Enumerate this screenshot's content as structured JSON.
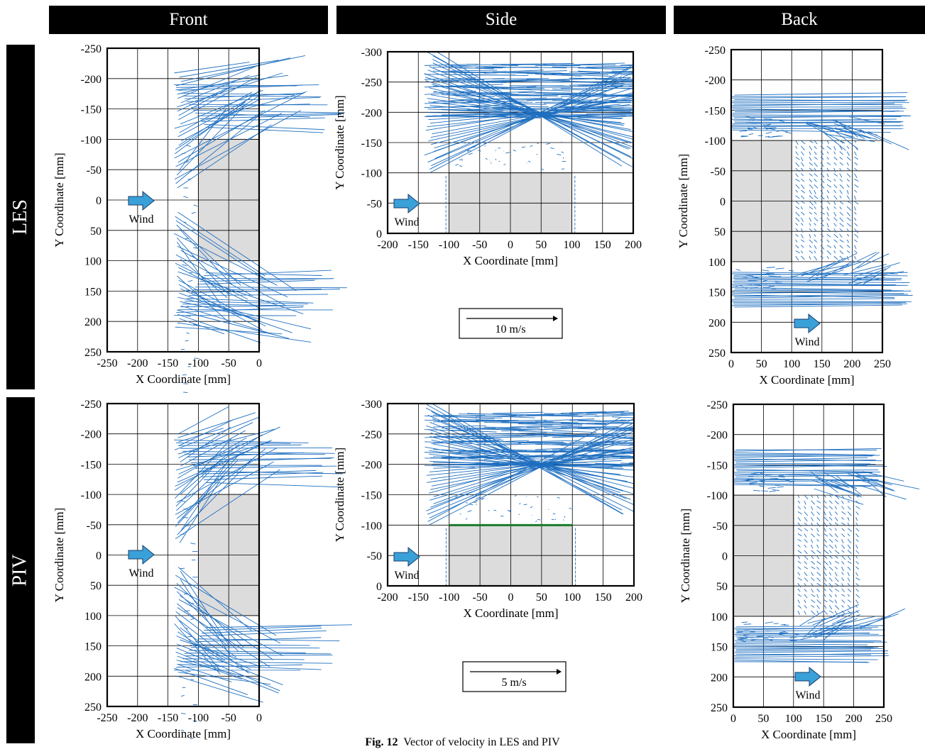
{
  "headers": {
    "columns": [
      "Front",
      "Side",
      "Back"
    ],
    "rows": [
      "LES",
      "PIV"
    ]
  },
  "caption": {
    "label": "Fig. 12",
    "text": "Vector of velocity in LES and PIV"
  },
  "colors": {
    "vector": "#1f6fc0",
    "building": "#dcdcdc",
    "grid": "#000000",
    "wind_arrow": "#3aa0d8",
    "roof_line": "#1a7a2a"
  },
  "chart_data": [
    {
      "id": "les-front",
      "type": "vector-field",
      "row": "LES",
      "view": "Front",
      "xlabel": "X Coordinate [mm]",
      "ylabel": "Y Coordinate [mm]",
      "xlim": [
        -250,
        0
      ],
      "ylim": [
        -250,
        250
      ],
      "y_inverted": true,
      "xticks": [
        "-250",
        "-200",
        "-150",
        "-100",
        "-50",
        "0"
      ],
      "yticks": [
        "-250",
        "-200",
        "-150",
        "-100",
        "-50",
        "0",
        "50",
        "100",
        "150",
        "200",
        "250"
      ],
      "building": {
        "x": [
          -100,
          0
        ],
        "y": [
          -100,
          100
        ]
      },
      "wind_label": "Wind",
      "grid": true
    },
    {
      "id": "les-side",
      "type": "vector-field",
      "row": "LES",
      "view": "Side",
      "xlabel": "X Coordinate [mm]",
      "ylabel": "Y Coordinate [mm]",
      "xlim": [
        -200,
        200
      ],
      "ylim": [
        -300,
        0
      ],
      "y_inverted": true,
      "xticks": [
        "-200",
        "-150",
        "-100",
        "-50",
        "0",
        "50",
        "100",
        "150",
        "200"
      ],
      "yticks": [
        "-300",
        "-250",
        "-200",
        "-150",
        "-100",
        "-50",
        "0"
      ],
      "building": {
        "x": [
          -100,
          100
        ],
        "y": [
          -100,
          0
        ]
      },
      "wind_label": "Wind",
      "grid": true,
      "scale_reference": "10 m/s"
    },
    {
      "id": "les-back",
      "type": "vector-field",
      "row": "LES",
      "view": "Back",
      "xlabel": "X Coordinate [mm]",
      "ylabel": "Y Coordinate [mm]",
      "xlim": [
        0,
        250
      ],
      "ylim": [
        -250,
        250
      ],
      "y_inverted": true,
      "xticks": [
        "0",
        "50",
        "100",
        "150",
        "200",
        "250"
      ],
      "yticks": [
        "-250",
        "-200",
        "-150",
        "-100",
        "-50",
        "0",
        "50",
        "100",
        "150",
        "200",
        "250"
      ],
      "building": {
        "x": [
          0,
          100
        ],
        "y": [
          -100,
          100
        ]
      },
      "wind_label": "Wind",
      "grid": true
    },
    {
      "id": "piv-front",
      "type": "vector-field",
      "row": "PIV",
      "view": "Front",
      "xlabel": "X Coordinate [mm]",
      "ylabel": "Y Coordinate [mm]",
      "xlim": [
        -250,
        0
      ],
      "ylim": [
        -250,
        250
      ],
      "y_inverted": true,
      "xticks": [
        "-250",
        "-200",
        "-150",
        "-100",
        "-50",
        "0"
      ],
      "yticks": [
        "-250",
        "-200",
        "-150",
        "-100",
        "-50",
        "0",
        "50",
        "100",
        "150",
        "200",
        "250"
      ],
      "building": {
        "x": [
          -100,
          0
        ],
        "y": [
          -100,
          100
        ]
      },
      "wind_label": "Wind",
      "grid": true
    },
    {
      "id": "piv-side",
      "type": "vector-field",
      "row": "PIV",
      "view": "Side",
      "xlabel": "X Coordinate [mm]",
      "ylabel": "Y Coordinate [mm]",
      "xlim": [
        -200,
        200
      ],
      "ylim": [
        -300,
        0
      ],
      "y_inverted": true,
      "xticks": [
        "-200",
        "-150",
        "-100",
        "-50",
        "0",
        "50",
        "100",
        "150",
        "200"
      ],
      "yticks": [
        "-300",
        "-250",
        "-200",
        "-150",
        "-100",
        "-50",
        "0"
      ],
      "building": {
        "x": [
          -100,
          100
        ],
        "y": [
          -100,
          0
        ]
      },
      "wind_label": "Wind",
      "grid": true,
      "scale_reference": "5 m/s"
    },
    {
      "id": "piv-back",
      "type": "vector-field",
      "row": "PIV",
      "view": "Back",
      "xlabel": "X Coordinate [mm]",
      "ylabel": "Y Coordinate [mm]",
      "xlim": [
        0,
        250
      ],
      "ylim": [
        -250,
        250
      ],
      "y_inverted": true,
      "xticks": [
        "0",
        "50",
        "100",
        "150",
        "200",
        "250"
      ],
      "yticks": [
        "-250",
        "-200",
        "-150",
        "-100",
        "-50",
        "0",
        "50",
        "100",
        "150",
        "200",
        "250"
      ],
      "building": {
        "x": [
          0,
          100
        ],
        "y": [
          -100,
          100
        ]
      },
      "wind_label": "Wind",
      "grid": true
    }
  ]
}
